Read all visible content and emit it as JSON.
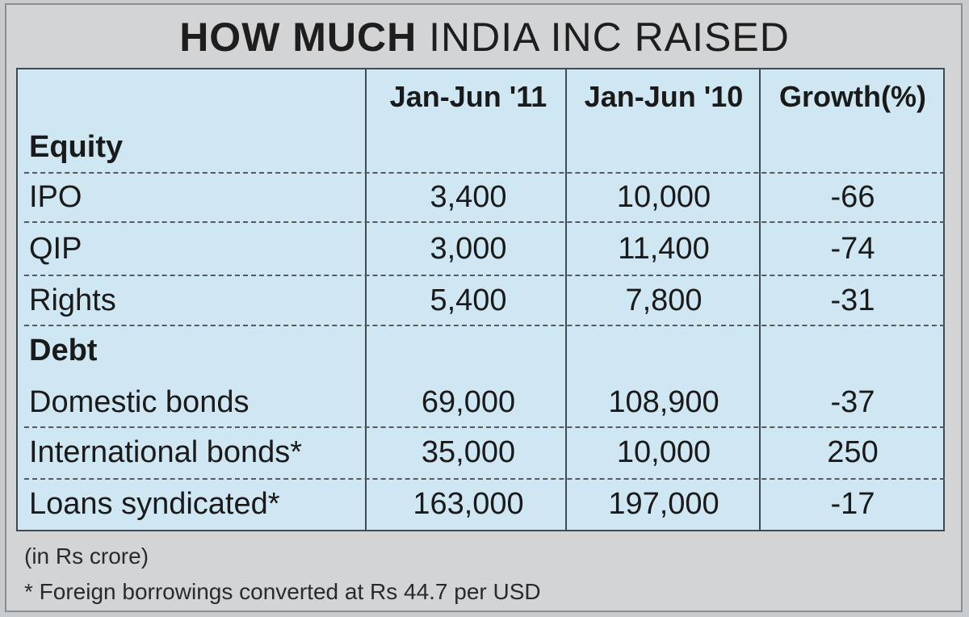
{
  "title": {
    "bold": "HOW MUCH",
    "light": "INDIA INC RAISED"
  },
  "chart_data": {
    "type": "table",
    "columns": [
      "Jan-Jun '11",
      "Jan-Jun '10",
      "Growth(%)"
    ],
    "sections": [
      {
        "name": "Equity",
        "rows": [
          {
            "label": "IPO",
            "values": [
              "3,400",
              "10,000",
              "-66"
            ]
          },
          {
            "label": "QIP",
            "values": [
              "3,000",
              "11,400",
              "-74"
            ]
          },
          {
            "label": "Rights",
            "values": [
              "5,400",
              "7,800",
              "-31"
            ]
          }
        ]
      },
      {
        "name": "Debt",
        "rows": [
          {
            "label": "Domestic bonds",
            "values": [
              "69,000",
              "108,900",
              "-37"
            ]
          },
          {
            "label": "International bonds*",
            "values": [
              "35,000",
              "10,000",
              "250"
            ]
          },
          {
            "label": "Loans syndicated*",
            "values": [
              "163,000",
              "197,000",
              "-17"
            ]
          }
        ]
      }
    ]
  },
  "notes": {
    "unit": "(in Rs crore)",
    "footnote": "* Foreign borrowings converted at Rs 44.7 per USD"
  }
}
